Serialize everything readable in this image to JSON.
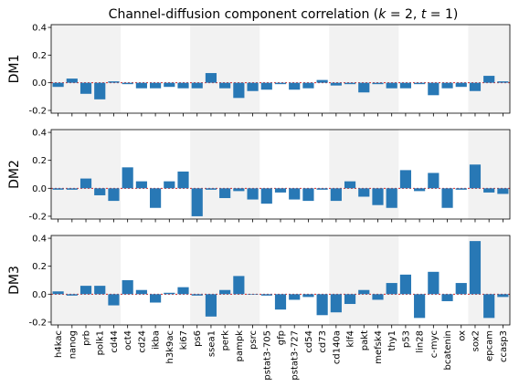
{
  "chart_data": {
    "type": "bar",
    "title": "Channel-diffusion component correlation (k = 2, t = 1)",
    "categories": [
      "h4kac",
      "nanog",
      "prb",
      "polk1",
      "cd44",
      "oct4",
      "cd24",
      "ikba",
      "h3k9ac",
      "ki67",
      "ps6",
      "ssea1",
      "perk",
      "pampk",
      "psrc",
      "pstat3-705",
      "gfp",
      "pstat3-727",
      "cd54",
      "cd73",
      "cd140a",
      "klf4",
      "pakt",
      "mefsk4",
      "thy1",
      "p53",
      "lin28",
      "c-myc",
      "bcatenin",
      "ox",
      "sox2",
      "epcam",
      "ccasp3"
    ],
    "ylim": [
      -0.22,
      0.42
    ],
    "yticks": [
      "0.4",
      "0.2",
      "0.0",
      "-0.2"
    ],
    "ytick_values": [
      0.4,
      0.2,
      0.0,
      -0.2
    ],
    "shaded_groups": [
      [
        0,
        4
      ],
      [
        10,
        14
      ],
      [
        20,
        24
      ],
      [
        30,
        32
      ]
    ],
    "bar_color": "#2878b5",
    "zero_line_color": "#d62728",
    "shade_color": "#f2f2f2",
    "series": [
      {
        "name": "DM1",
        "values": [
          -0.03,
          0.03,
          -0.08,
          -0.12,
          0.01,
          -0.01,
          -0.04,
          -0.04,
          -0.03,
          -0.04,
          -0.04,
          0.07,
          -0.04,
          -0.11,
          -0.06,
          -0.05,
          -0.01,
          -0.05,
          -0.04,
          0.02,
          -0.02,
          -0.01,
          -0.07,
          -0.01,
          -0.04,
          -0.04,
          -0.01,
          -0.09,
          -0.04,
          -0.03,
          -0.06,
          0.05,
          0.01
        ]
      },
      {
        "name": "DM2",
        "values": [
          -0.01,
          -0.01,
          0.07,
          -0.05,
          -0.09,
          0.15,
          0.05,
          -0.14,
          0.05,
          0.12,
          -0.2,
          -0.01,
          -0.07,
          -0.02,
          -0.08,
          -0.11,
          -0.03,
          -0.08,
          -0.09,
          -0.01,
          -0.09,
          0.05,
          -0.06,
          -0.12,
          -0.14,
          0.13,
          -0.02,
          0.11,
          -0.14,
          -0.01,
          0.17,
          -0.03,
          -0.04
        ]
      },
      {
        "name": "DM3",
        "values": [
          0.02,
          -0.01,
          0.06,
          0.06,
          -0.08,
          0.1,
          0.03,
          -0.06,
          0.01,
          0.05,
          -0.01,
          -0.16,
          0.03,
          0.13,
          0.0,
          -0.01,
          -0.11,
          -0.04,
          -0.02,
          -0.15,
          -0.13,
          -0.07,
          0.03,
          -0.04,
          0.08,
          0.14,
          -0.17,
          0.16,
          -0.05,
          0.08,
          0.38,
          -0.17,
          -0.02
        ]
      }
    ]
  }
}
